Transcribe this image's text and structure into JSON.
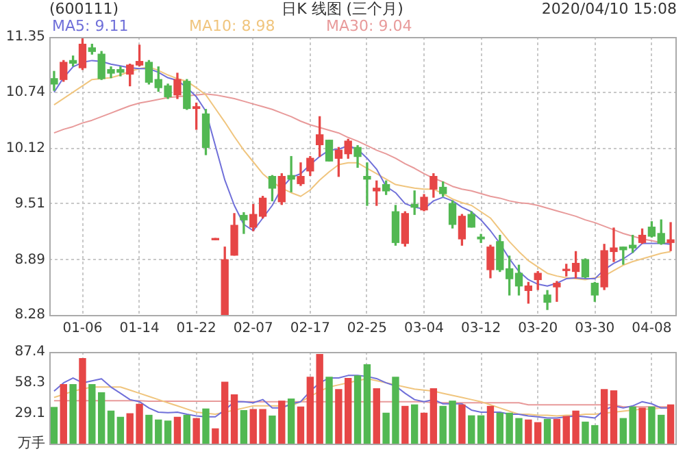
{
  "chart_data": [
    {
      "type": "candlestick",
      "title": "日K 线图 (三个月)",
      "annotations": [
        "(600111)",
        "2020/04/10 15:08"
      ],
      "categories": [
        null,
        null,
        null,
        "01-06",
        null,
        null,
        null,
        null,
        null,
        "01-14",
        null,
        null,
        null,
        null,
        null,
        "01-22",
        null,
        null,
        null,
        null,
        null,
        "02-07",
        null,
        null,
        null,
        null,
        null,
        "02-17",
        null,
        null,
        null,
        null,
        null,
        "02-25",
        null,
        null,
        null,
        null,
        null,
        "03-04",
        null,
        null,
        null,
        null,
        null,
        "03-12",
        null,
        null,
        null,
        null,
        null,
        "03-20",
        null,
        null,
        null,
        null,
        null,
        "03-30",
        null,
        null,
        null,
        null,
        null,
        "04-08",
        null,
        null
      ],
      "ohlc": [
        [
          10.89,
          10.97,
          10.76,
          10.83
        ],
        [
          10.88,
          11.09,
          10.86,
          11.07
        ],
        [
          11.09,
          11.14,
          11.03,
          11.06
        ],
        [
          11.01,
          11.33,
          10.99,
          11.27
        ],
        [
          11.23,
          11.27,
          11.16,
          11.19
        ],
        [
          11.16,
          11.19,
          10.88,
          10.89
        ],
        [
          10.99,
          11.02,
          10.9,
          10.95
        ],
        [
          10.99,
          11.02,
          10.92,
          10.96
        ],
        [
          10.94,
          11.05,
          10.81,
          11.04
        ],
        [
          11.04,
          11.26,
          11.03,
          11.08
        ],
        [
          11.07,
          11.09,
          10.83,
          10.85
        ],
        [
          10.88,
          11.02,
          10.75,
          10.79
        ],
        [
          10.81,
          10.83,
          10.67,
          10.69
        ],
        [
          10.71,
          10.95,
          10.67,
          10.88
        ],
        [
          10.86,
          10.88,
          10.55,
          10.56
        ],
        [
          10.56,
          10.62,
          10.33,
          10.58
        ],
        [
          10.5,
          10.55,
          10.05,
          10.13
        ],
        [
          9.11,
          9.12,
          9.11,
          9.12
        ],
        [
          8.28,
          9.03,
          8.28,
          8.89
        ],
        [
          8.94,
          9.4,
          8.94,
          9.27
        ],
        [
          9.38,
          9.41,
          9.18,
          9.33
        ],
        [
          9.25,
          9.5,
          9.21,
          9.39
        ],
        [
          9.37,
          9.59,
          9.35,
          9.57
        ],
        [
          9.81,
          9.82,
          9.54,
          9.68
        ],
        [
          9.53,
          9.84,
          9.5,
          9.81
        ],
        [
          9.82,
          10.03,
          9.64,
          9.78
        ],
        [
          9.73,
          9.96,
          9.71,
          9.81
        ],
        [
          9.87,
          10.03,
          9.82,
          10.01
        ],
        [
          10.16,
          10.47,
          10.03,
          10.27
        ],
        [
          10.21,
          10.21,
          9.98,
          9.98
        ],
        [
          10.01,
          10.13,
          9.81,
          10.1
        ],
        [
          10.06,
          10.22,
          10.01,
          10.2
        ],
        [
          10.13,
          10.15,
          9.91,
          10.03
        ],
        [
          9.81,
          9.96,
          9.49,
          9.78
        ],
        [
          9.65,
          9.76,
          9.49,
          9.68
        ],
        [
          9.72,
          9.76,
          9.61,
          9.65
        ],
        [
          9.42,
          9.49,
          9.05,
          9.08
        ],
        [
          9.07,
          9.42,
          9.04,
          9.4
        ],
        [
          9.5,
          9.65,
          9.39,
          9.47
        ],
        [
          9.44,
          9.61,
          9.43,
          9.58
        ],
        [
          9.67,
          9.84,
          9.58,
          9.81
        ],
        [
          9.69,
          9.75,
          9.59,
          9.62
        ],
        [
          9.51,
          9.54,
          9.24,
          9.28
        ],
        [
          9.12,
          9.39,
          9.05,
          9.37
        ],
        [
          9.39,
          9.42,
          9.25,
          9.25
        ],
        [
          9.14,
          9.17,
          9.08,
          9.12
        ],
        [
          8.78,
          9.05,
          8.69,
          9.03
        ],
        [
          9.09,
          9.16,
          8.76,
          8.78
        ],
        [
          8.79,
          8.93,
          8.5,
          8.68
        ],
        [
          8.74,
          8.83,
          8.5,
          8.6
        ],
        [
          8.55,
          8.64,
          8.41,
          8.6
        ],
        [
          8.67,
          8.76,
          8.56,
          8.74
        ],
        [
          8.5,
          8.55,
          8.34,
          8.42
        ],
        [
          8.59,
          8.65,
          8.43,
          8.63
        ],
        [
          8.77,
          8.84,
          8.71,
          8.78
        ],
        [
          8.76,
          8.98,
          8.69,
          8.85
        ],
        [
          8.89,
          8.9,
          8.69,
          8.7
        ],
        [
          8.63,
          8.64,
          8.43,
          8.5
        ],
        [
          8.59,
          9.06,
          8.56,
          8.99
        ],
        [
          8.98,
          9.24,
          8.87,
          9.02
        ],
        [
          9.03,
          9.03,
          8.84,
          9.0
        ],
        [
          9.05,
          9.16,
          8.97,
          9.02
        ],
        [
          9.08,
          9.23,
          9.07,
          9.16
        ],
        [
          9.25,
          9.31,
          9.14,
          9.15
        ],
        [
          9.18,
          9.33,
          9.06,
          9.07
        ],
        [
          9.08,
          9.3,
          8.99,
          9.11
        ]
      ],
      "colors": [
        "#52b852",
        "#e64646",
        "#52b852",
        "#e64646",
        "#52b852",
        "#52b852",
        "#52b852",
        "#52b852",
        "#e64646",
        "#e64646",
        "#52b852",
        "#52b852",
        "#52b852",
        "#e64646",
        "#52b852",
        "#e64646",
        "#52b852",
        "#e64646",
        "#e64646",
        "#e64646",
        "#52b852",
        "#e64646",
        "#e64646",
        "#52b852",
        "#e64646",
        "#52b852",
        "#e64646",
        "#e64646",
        "#e64646",
        "#52b852",
        "#e64646",
        "#e64646",
        "#52b852",
        "#52b852",
        "#e64646",
        "#52b852",
        "#52b852",
        "#e64646",
        "#52b852",
        "#e64646",
        "#e64646",
        "#52b852",
        "#52b852",
        "#e64646",
        "#52b852",
        "#52b852",
        "#e64646",
        "#52b852",
        "#52b852",
        "#52b852",
        "#e64646",
        "#e64646",
        "#52b852",
        "#e64646",
        "#e64646",
        "#e64646",
        "#52b852",
        "#52b852",
        "#e64646",
        "#e64646",
        "#52b852",
        "#52b852",
        "#e64646",
        "#52b852",
        "#52b852",
        "#e64646"
      ],
      "series": [
        {
          "type": "line",
          "name": "MA5: 9.11",
          "color": "#6f6fd9",
          "values": [
            10.74,
            10.9,
            11.02,
            11.07,
            11.09,
            11.08,
            11.05,
            11.03,
            11.01,
            11.0,
            11.0,
            10.96,
            10.9,
            10.87,
            10.79,
            10.69,
            10.53,
            10.15,
            9.77,
            9.49,
            9.28,
            9.21,
            9.35,
            9.49,
            9.68,
            9.8,
            9.84,
            9.94,
            10.03,
            10.1,
            10.11,
            10.15,
            10.11,
            10.01,
            9.89,
            9.7,
            9.63,
            9.51,
            9.47,
            9.45,
            9.54,
            9.58,
            9.54,
            9.47,
            9.42,
            9.33,
            9.21,
            9.07,
            8.9,
            8.76,
            8.67,
            8.62,
            8.6,
            8.63,
            8.68,
            8.69,
            8.68,
            8.68,
            8.78,
            8.85,
            8.9,
            8.97,
            9.07,
            9.07,
            9.07,
            9.06
          ]
        },
        {
          "type": "line",
          "name": "MA10: 8.98",
          "color": "#f0c57e",
          "values": [
            10.6,
            10.67,
            10.74,
            10.81,
            10.88,
            10.89,
            10.9,
            10.93,
            10.97,
            11.0,
            11.02,
            10.98,
            10.93,
            10.89,
            10.86,
            10.79,
            10.71,
            10.56,
            10.41,
            10.25,
            10.1,
            9.97,
            9.84,
            9.75,
            9.68,
            9.63,
            9.59,
            9.66,
            9.77,
            9.86,
            9.94,
            9.96,
            9.96,
            9.9,
            9.84,
            9.78,
            9.72,
            9.7,
            9.68,
            9.67,
            9.67,
            9.62,
            9.56,
            9.52,
            9.49,
            9.42,
            9.35,
            9.22,
            9.09,
            8.98,
            8.88,
            8.81,
            8.74,
            8.71,
            8.69,
            8.68,
            8.67,
            8.69,
            8.71,
            8.77,
            8.83,
            8.87,
            8.9,
            8.93,
            8.96,
            8.98
          ]
        },
        {
          "type": "line",
          "name": "MA30: 9.04",
          "color": "#e89a9a",
          "values": [
            10.29,
            10.33,
            10.36,
            10.4,
            10.43,
            10.47,
            10.51,
            10.55,
            10.59,
            10.62,
            10.64,
            10.66,
            10.68,
            10.69,
            10.7,
            10.71,
            10.72,
            10.71,
            10.69,
            10.67,
            10.64,
            10.61,
            10.58,
            10.55,
            10.51,
            10.47,
            10.42,
            10.38,
            10.35,
            10.32,
            10.29,
            10.24,
            10.2,
            10.15,
            10.1,
            10.06,
            10.01,
            9.95,
            9.9,
            9.84,
            9.79,
            9.75,
            9.7,
            9.67,
            9.65,
            9.62,
            9.59,
            9.57,
            9.54,
            9.52,
            9.51,
            9.49,
            9.46,
            9.43,
            9.4,
            9.37,
            9.33,
            9.3,
            9.26,
            9.22,
            9.18,
            9.15,
            9.12,
            9.1,
            9.08,
            9.07
          ]
        }
      ],
      "ylim": [
        8.28,
        11.35
      ],
      "yticks": [
        8.28,
        8.89,
        9.51,
        10.12,
        10.74,
        11.35
      ],
      "grid": true,
      "legend": "top left",
      "marker": "none"
    },
    {
      "type": "bar",
      "categories": [
        null,
        null,
        null,
        null,
        null,
        null,
        null,
        null,
        null,
        null,
        null,
        null,
        null,
        null,
        null,
        null,
        null,
        null,
        null,
        null,
        null,
        null,
        null,
        null,
        null,
        null,
        null,
        null,
        null,
        null,
        null,
        null,
        null,
        null,
        null,
        null,
        null,
        null,
        null,
        null,
        null,
        null,
        null,
        null,
        null,
        null,
        null,
        null,
        null,
        null,
        null,
        null,
        null,
        null,
        null,
        null,
        null,
        null,
        null,
        null,
        null,
        null,
        null,
        null,
        null,
        null
      ],
      "values": [
        35,
        56.7,
        56.7,
        81.5,
        56.7,
        49,
        31.5,
        25.6,
        29,
        38,
        27.5,
        23,
        22,
        25.6,
        27.5,
        24.4,
        33.5,
        14.6,
        59,
        47,
        32,
        33,
        33,
        26.8,
        41,
        43,
        35.4,
        63.8,
        85.4,
        63.8,
        52,
        62.6,
        65,
        75.6,
        52.8,
        29.5,
        63.8,
        36,
        37.4,
        29.5,
        52.8,
        36,
        41,
        37.4,
        27,
        27,
        36,
        29.5,
        29.5,
        24.4,
        23,
        20.5,
        23.6,
        23.6,
        26.4,
        31.5,
        21,
        17.7,
        52,
        50.8,
        24.4,
        35.4,
        34.3,
        35.4,
        27.5,
        37.4
      ],
      "colors": [
        "#52b852",
        "#e64646",
        "#52b852",
        "#e64646",
        "#52b852",
        "#52b852",
        "#52b852",
        "#52b852",
        "#e64646",
        "#e64646",
        "#52b852",
        "#52b852",
        "#52b852",
        "#e64646",
        "#52b852",
        "#e64646",
        "#52b852",
        "#e64646",
        "#e64646",
        "#e64646",
        "#52b852",
        "#e64646",
        "#e64646",
        "#52b852",
        "#e64646",
        "#52b852",
        "#e64646",
        "#e64646",
        "#e64646",
        "#52b852",
        "#e64646",
        "#e64646",
        "#52b852",
        "#52b852",
        "#e64646",
        "#52b852",
        "#52b852",
        "#e64646",
        "#52b852",
        "#e64646",
        "#e64646",
        "#52b852",
        "#52b852",
        "#e64646",
        "#52b852",
        "#52b852",
        "#e64646",
        "#52b852",
        "#52b852",
        "#52b852",
        "#e64646",
        "#e64646",
        "#52b852",
        "#e64646",
        "#e64646",
        "#e64646",
        "#52b852",
        "#52b852",
        "#e64646",
        "#e64646",
        "#52b852",
        "#52b852",
        "#e64646",
        "#52b852",
        "#52b852",
        "#e64646"
      ],
      "series": [
        {
          "type": "line",
          "color": "#6f6fd9",
          "values": [
            50,
            57.9,
            62.6,
            57.9,
            59.8,
            61.8,
            53.9,
            48,
            42,
            40,
            34,
            30,
            29.5,
            30,
            28,
            26.4,
            25.6,
            25.6,
            32,
            40,
            40,
            39,
            42,
            34,
            34,
            38,
            40,
            50,
            57.9,
            62.6,
            62.6,
            65,
            65,
            64,
            62,
            58,
            55,
            48,
            42,
            40,
            42,
            38,
            38,
            38,
            32,
            30,
            30,
            30,
            28,
            28,
            26.4,
            25.6,
            24.4,
            24.4,
            25.6,
            26.4,
            25.6,
            24.4,
            32,
            36,
            34,
            36,
            40,
            38,
            34,
            34
          ]
        },
        {
          "type": "line",
          "color": "#f0c57e",
          "values": [
            44,
            47,
            50,
            52,
            54,
            54,
            54,
            54,
            51,
            48,
            45,
            42,
            39,
            36,
            33,
            30,
            29,
            28,
            30,
            32,
            34,
            36,
            36,
            36,
            36,
            36,
            40,
            45,
            50,
            54,
            56,
            58,
            60,
            62,
            60,
            58,
            56,
            54,
            52,
            51,
            50,
            48,
            46,
            44,
            42,
            40,
            37,
            34,
            31,
            28,
            28,
            27,
            27,
            26.4,
            27,
            27,
            28,
            28,
            29,
            30,
            31,
            32,
            33,
            33,
            34,
            34
          ]
        },
        {
          "type": "line",
          "color": "#e89a9a",
          "values": [
            41,
            41,
            41,
            41,
            41,
            41,
            41,
            41,
            41,
            41,
            40.5,
            40.5,
            40.5,
            40.5,
            40.5,
            40.5,
            40.5,
            40.5,
            40.5,
            40.5,
            40,
            40,
            40,
            40,
            40,
            40,
            40,
            40,
            40,
            40,
            40,
            40,
            40,
            40,
            40,
            40,
            40,
            40,
            40,
            40,
            39,
            39,
            39,
            39,
            39,
            39,
            39,
            39,
            39,
            39,
            37,
            37,
            37,
            37,
            37,
            37,
            37,
            37,
            37,
            37,
            35,
            35,
            35,
            35,
            35,
            35
          ]
        }
      ],
      "ylim": [
        0,
        87.4
      ],
      "yticks": [
        {
          "value": 0,
          "label": "万手"
        },
        29.1,
        58.3,
        87.4
      ],
      "grid": "x",
      "tick_labels": "y",
      "marker": "none"
    }
  ]
}
